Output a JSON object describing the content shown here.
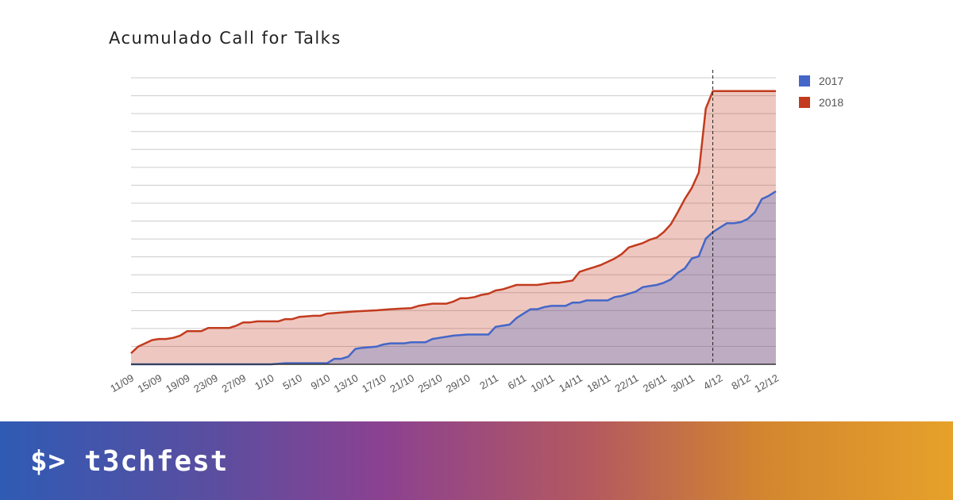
{
  "chart_data": {
    "type": "area",
    "title": "Acumulado Call for Talks",
    "categories": [
      "11/09",
      "15/09",
      "19/09",
      "23/09",
      "27/09",
      "1/10",
      "5/10",
      "9/10",
      "13/10",
      "17/10",
      "21/10",
      "25/10",
      "29/10",
      "2/11",
      "6/11",
      "10/11",
      "14/11",
      "18/11",
      "22/11",
      "26/11",
      "30/11",
      "4/12",
      "8/12",
      "12/12"
    ],
    "x": [
      0,
      4,
      8,
      12,
      16,
      20,
      24,
      28,
      32,
      36,
      40,
      44,
      48,
      52,
      56,
      60,
      64,
      68,
      72,
      76,
      80,
      84,
      88,
      92
    ],
    "series": [
      {
        "name": "2017",
        "color": "#4466c8",
        "points": [
          [
            0,
            0
          ],
          [
            20,
            0
          ],
          [
            22,
            0.5
          ],
          [
            28,
            0.5
          ],
          [
            29,
            2.5
          ],
          [
            30,
            2.5
          ],
          [
            31,
            3.5
          ],
          [
            32,
            7
          ],
          [
            33,
            7.5
          ],
          [
            35,
            8
          ],
          [
            36,
            9
          ],
          [
            37,
            9.5
          ],
          [
            39,
            9.5
          ],
          [
            40,
            10
          ],
          [
            42,
            10
          ],
          [
            43,
            11.5
          ],
          [
            44,
            12
          ],
          [
            46,
            13
          ],
          [
            48,
            13.5
          ],
          [
            51,
            13.5
          ],
          [
            52,
            17
          ],
          [
            53,
            17.5
          ],
          [
            54,
            18
          ],
          [
            55,
            21
          ],
          [
            56,
            23
          ],
          [
            57,
            25
          ],
          [
            58,
            25
          ],
          [
            59,
            26
          ],
          [
            60,
            26.5
          ],
          [
            62,
            26.5
          ],
          [
            63,
            28
          ],
          [
            64,
            28
          ],
          [
            65,
            29
          ],
          [
            68,
            29
          ],
          [
            69,
            30.5
          ],
          [
            70,
            31
          ],
          [
            71,
            32
          ],
          [
            72,
            33
          ],
          [
            73,
            35
          ],
          [
            74,
            35.5
          ],
          [
            75,
            36
          ],
          [
            76,
            37
          ],
          [
            77,
            38.5
          ],
          [
            78,
            41.5
          ],
          [
            79,
            43.5
          ],
          [
            80,
            48
          ],
          [
            81,
            49
          ],
          [
            82,
            57
          ],
          [
            83,
            60
          ],
          [
            84,
            62
          ],
          [
            85,
            64
          ],
          [
            86,
            64
          ],
          [
            87,
            64.5
          ],
          [
            88,
            66
          ],
          [
            89,
            69
          ],
          [
            90,
            75
          ],
          [
            91,
            76.5
          ],
          [
            92,
            78.5
          ]
        ]
      },
      {
        "name": "2018",
        "color": "#c23b1e",
        "points": [
          [
            0,
            5
          ],
          [
            1,
            8
          ],
          [
            2,
            9.5
          ],
          [
            3,
            11
          ],
          [
            4,
            11.5
          ],
          [
            5,
            11.5
          ],
          [
            6,
            12
          ],
          [
            7,
            13
          ],
          [
            8,
            15
          ],
          [
            10,
            15
          ],
          [
            11,
            16.5
          ],
          [
            14,
            16.5
          ],
          [
            15,
            17.5
          ],
          [
            16,
            19
          ],
          [
            17,
            19
          ],
          [
            18,
            19.5
          ],
          [
            21,
            19.5
          ],
          [
            22,
            20.5
          ],
          [
            23,
            20.5
          ],
          [
            24,
            21.5
          ],
          [
            26,
            22
          ],
          [
            27,
            22
          ],
          [
            28,
            23
          ],
          [
            30,
            23.5
          ],
          [
            32,
            24
          ],
          [
            35,
            24.5
          ],
          [
            37,
            25
          ],
          [
            40,
            25.5
          ],
          [
            41,
            26.5
          ],
          [
            42,
            27
          ],
          [
            43,
            27.5
          ],
          [
            45,
            27.5
          ],
          [
            46,
            28.5
          ],
          [
            47,
            30
          ],
          [
            48,
            30
          ],
          [
            49,
            30.5
          ],
          [
            50,
            31.5
          ],
          [
            51,
            32
          ],
          [
            52,
            33.5
          ],
          [
            53,
            34
          ],
          [
            54,
            35
          ],
          [
            55,
            36
          ],
          [
            58,
            36
          ],
          [
            59,
            36.5
          ],
          [
            60,
            37
          ],
          [
            61,
            37
          ],
          [
            62,
            37.5
          ],
          [
            63,
            38
          ],
          [
            64,
            42
          ],
          [
            65,
            43
          ],
          [
            66,
            44
          ],
          [
            67,
            45
          ],
          [
            68,
            46.5
          ],
          [
            69,
            48
          ],
          [
            70,
            50
          ],
          [
            71,
            53
          ],
          [
            72,
            54
          ],
          [
            73,
            55
          ],
          [
            74,
            56.5
          ],
          [
            75,
            57.5
          ],
          [
            76,
            60
          ],
          [
            77,
            63.5
          ],
          [
            78,
            69
          ],
          [
            79,
            75
          ],
          [
            80,
            80
          ],
          [
            81,
            87
          ],
          [
            82,
            116
          ],
          [
            83,
            124
          ],
          [
            92,
            124
          ]
        ]
      }
    ],
    "xlim": [
      0,
      92
    ],
    "ylim": [
      0,
      130
    ],
    "gridlines": 16,
    "annotation": {
      "type": "vertical-dashed-line",
      "x": 83
    },
    "grid": true,
    "legend_position": "top-right",
    "legend": [
      {
        "label": "2017",
        "color": "#4466c8"
      },
      {
        "label": "2018",
        "color": "#c23b1e"
      }
    ]
  },
  "footer": {
    "brand": "$> t3chfest"
  }
}
